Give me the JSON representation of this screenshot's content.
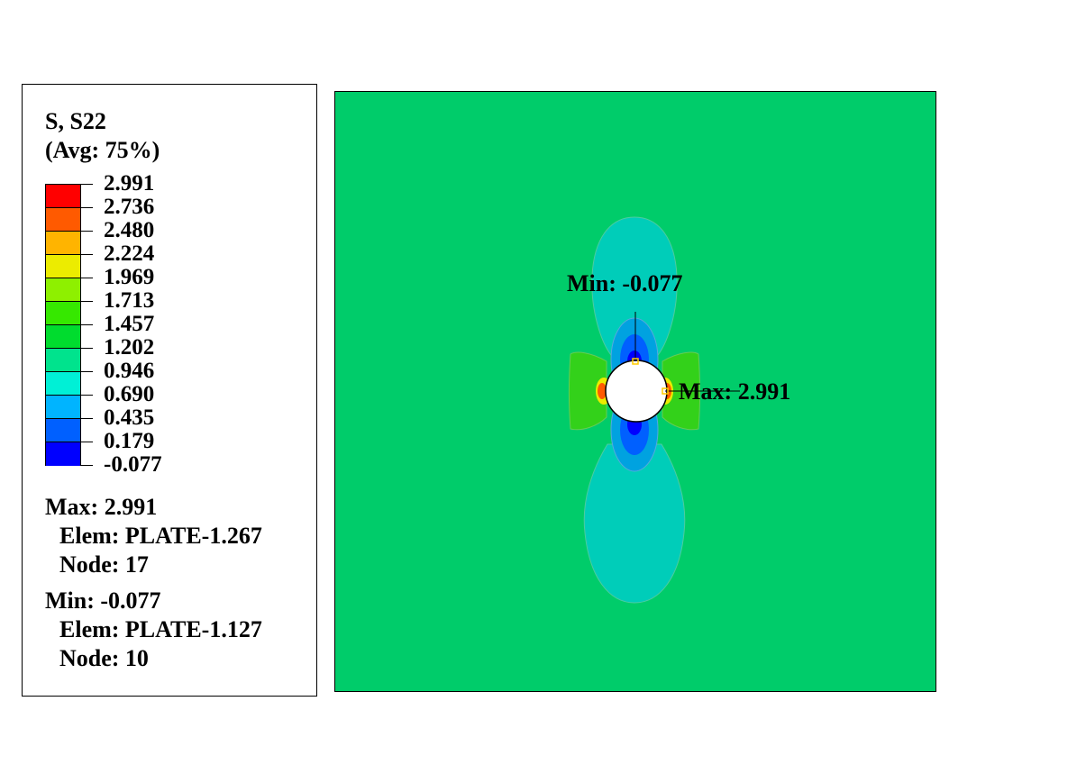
{
  "legend": {
    "title": "S, S22",
    "subtitle": "(Avg: 75%)",
    "levels": [
      "2.991",
      "2.736",
      "2.480",
      "2.224",
      "1.969",
      "1.713",
      "1.457",
      "1.202",
      "0.946",
      "0.690",
      "0.435",
      "0.179",
      "-0.077"
    ],
    "colors": [
      "#ff0000",
      "#ff5a00",
      "#ffb400",
      "#ecec00",
      "#8ef000",
      "#36e800",
      "#00dc2e",
      "#00e38d",
      "#00f0d6",
      "#00b4ff",
      "#0060ff",
      "#0000ff"
    ]
  },
  "stats": {
    "max_line": "Max: 2.991",
    "max_elem": "Elem: PLATE-1.267",
    "max_node": "Node: 17",
    "min_line": "Min: -0.077",
    "min_elem": "Elem: PLATE-1.127",
    "min_node": "Node: 10"
  },
  "viewport": {
    "plate_color": "#00cc6a",
    "min_marker": "Min: -0.077",
    "max_marker": "Max: 2.991"
  }
}
